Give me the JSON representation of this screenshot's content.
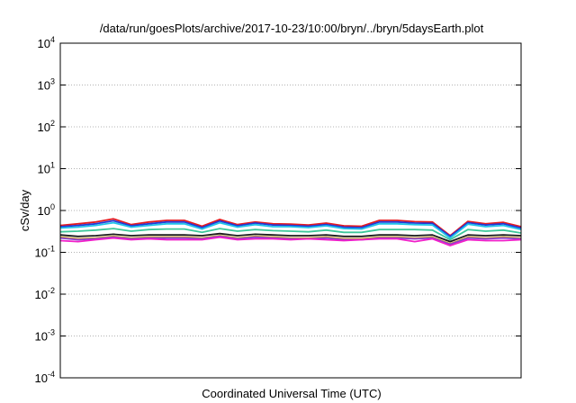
{
  "chart_data": {
    "type": "line",
    "title": "/data/run/goesPlots/archive/2017-10-23/10:00/bryn/../bryn/5daysEarth.plot",
    "xlabel": "Coordinated Universal Time (UTC)",
    "ylabel": "cSv/day",
    "yscale": "log",
    "ylim": [
      0.0001,
      10000
    ],
    "yticks": [
      {
        "base": "10",
        "exp": "-4",
        "value": 0.0001
      },
      {
        "base": "10",
        "exp": "-3",
        "value": 0.001
      },
      {
        "base": "10",
        "exp": "-2",
        "value": 0.01
      },
      {
        "base": "10",
        "exp": "-1",
        "value": 0.1
      },
      {
        "base": "10",
        "exp": "0",
        "value": 1
      },
      {
        "base": "10",
        "exp": "1",
        "value": 10
      },
      {
        "base": "10",
        "exp": "2",
        "value": 100
      },
      {
        "base": "10",
        "exp": "3",
        "value": 1000
      },
      {
        "base": "10",
        "exp": "4",
        "value": 10000
      }
    ],
    "grid": "horizontal dotted",
    "legend": "none",
    "series": [
      {
        "color": "#e5181f",
        "values": [
          0.44,
          0.48,
          0.53,
          0.63,
          0.46,
          0.53,
          0.58,
          0.58,
          0.42,
          0.61,
          0.46,
          0.53,
          0.48,
          0.47,
          0.45,
          0.5,
          0.43,
          0.42,
          0.58,
          0.58,
          0.54,
          0.53,
          0.25,
          0.55,
          0.48,
          0.52,
          0.41
        ]
      },
      {
        "color": "#1f3bd8",
        "values": [
          0.41,
          0.44,
          0.48,
          0.57,
          0.43,
          0.48,
          0.53,
          0.53,
          0.39,
          0.56,
          0.43,
          0.5,
          0.45,
          0.44,
          0.42,
          0.46,
          0.4,
          0.39,
          0.53,
          0.53,
          0.5,
          0.49,
          0.24,
          0.51,
          0.45,
          0.48,
          0.38
        ]
      },
      {
        "color": "#21c4e8",
        "values": [
          0.38,
          0.4,
          0.44,
          0.51,
          0.4,
          0.44,
          0.48,
          0.48,
          0.36,
          0.51,
          0.4,
          0.46,
          0.41,
          0.41,
          0.39,
          0.43,
          0.37,
          0.36,
          0.48,
          0.48,
          0.46,
          0.45,
          0.22,
          0.47,
          0.41,
          0.44,
          0.35
        ]
      },
      {
        "color": "#3dc79a",
        "values": [
          0.31,
          0.32,
          0.34,
          0.37,
          0.32,
          0.35,
          0.36,
          0.36,
          0.3,
          0.37,
          0.32,
          0.35,
          0.33,
          0.32,
          0.31,
          0.34,
          0.3,
          0.3,
          0.35,
          0.35,
          0.35,
          0.34,
          0.2,
          0.35,
          0.32,
          0.34,
          0.29
        ]
      },
      {
        "color": "#1b1b1b",
        "values": [
          0.26,
          0.24,
          0.25,
          0.27,
          0.25,
          0.26,
          0.26,
          0.26,
          0.25,
          0.28,
          0.25,
          0.27,
          0.26,
          0.25,
          0.25,
          0.26,
          0.24,
          0.24,
          0.26,
          0.26,
          0.25,
          0.26,
          0.18,
          0.26,
          0.25,
          0.26,
          0.25
        ]
      },
      {
        "color": "#d4a82a",
        "values": [
          0.23,
          0.21,
          0.22,
          0.24,
          0.22,
          0.23,
          0.23,
          0.23,
          0.22,
          0.25,
          0.22,
          0.24,
          0.23,
          0.22,
          0.22,
          0.23,
          0.21,
          0.21,
          0.23,
          0.23,
          0.22,
          0.23,
          0.16,
          0.23,
          0.22,
          0.23,
          0.22
        ]
      },
      {
        "color": "#8a3fd1",
        "values": [
          0.22,
          0.2,
          0.21,
          0.23,
          0.21,
          0.22,
          0.22,
          0.22,
          0.21,
          0.24,
          0.21,
          0.23,
          0.22,
          0.21,
          0.21,
          0.22,
          0.2,
          0.2,
          0.22,
          0.22,
          0.21,
          0.22,
          0.155,
          0.22,
          0.21,
          0.22,
          0.21
        ]
      },
      {
        "color": "#f01fc9",
        "values": [
          0.19,
          0.18,
          0.2,
          0.22,
          0.2,
          0.21,
          0.2,
          0.2,
          0.2,
          0.23,
          0.2,
          0.21,
          0.21,
          0.2,
          0.21,
          0.2,
          0.19,
          0.2,
          0.21,
          0.21,
          0.18,
          0.21,
          0.145,
          0.2,
          0.19,
          0.19,
          0.2
        ]
      }
    ]
  }
}
